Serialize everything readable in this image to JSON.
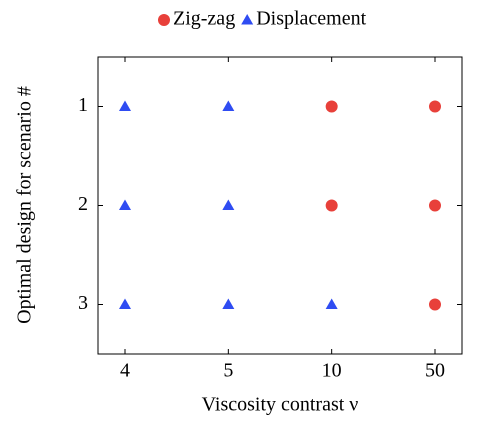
{
  "chart_data": {
    "type": "scatter",
    "x_label": "Viscosity contrast ν",
    "y_label": "Optimal design for scenario #",
    "categories": [
      "4",
      "5",
      "10",
      "50"
    ],
    "ylim": [
      0.5,
      3.5
    ],
    "yticks": [
      1,
      2,
      3
    ],
    "y_inverted": true,
    "grid": false,
    "legend": "top",
    "series": [
      {
        "name": "Zig-zag",
        "color": "#e8403a",
        "marker": "circle",
        "x": [
          "10",
          "50",
          "10",
          "50",
          "50"
        ],
        "values": [
          1,
          1,
          2,
          2,
          3
        ]
      },
      {
        "name": "Displacement",
        "color": "#2f4cf2",
        "marker": "triangle",
        "x": [
          "4",
          "5",
          "4",
          "5",
          "4",
          "5",
          "10"
        ],
        "values": [
          1,
          1,
          2,
          2,
          3,
          3,
          3
        ]
      }
    ]
  }
}
